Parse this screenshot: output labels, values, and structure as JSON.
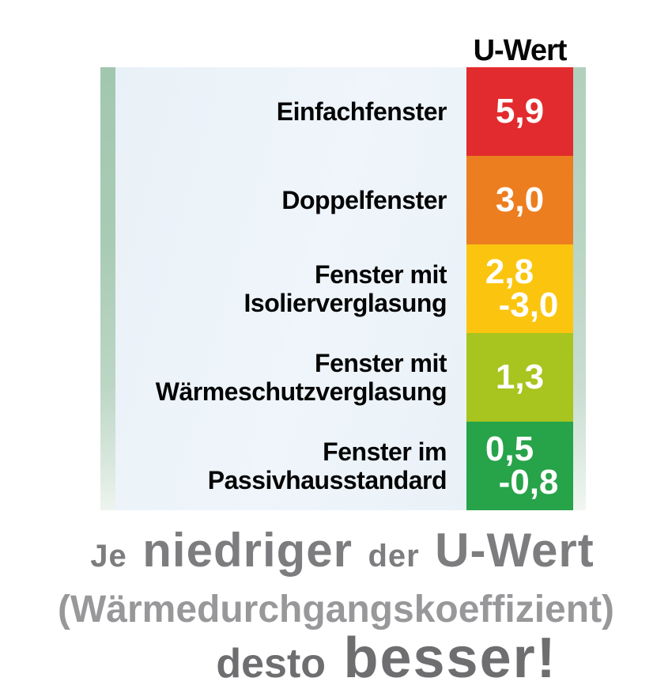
{
  "header": {
    "title": "U-Wert"
  },
  "chart_data": {
    "type": "bar",
    "title": "U-Wert",
    "categories": [
      "Einfachfenster",
      "Doppelfenster",
      "Fenster mit Isolierverglasung",
      "Fenster mit Wärmeschutzverglasung",
      "Fenster im Passivhausstandard"
    ],
    "value_labels": [
      "5,9",
      "3,0",
      "2,8 -3,0",
      "1,3",
      "0,5 -0,8"
    ],
    "values_numeric": [
      [
        5.9,
        5.9
      ],
      [
        3.0,
        3.0
      ],
      [
        2.8,
        3.0
      ],
      [
        1.3,
        1.3
      ],
      [
        0.5,
        0.8
      ]
    ],
    "colors": [
      "#e22b2e",
      "#ec7e20",
      "#fbc50f",
      "#a8c41f",
      "#27a34a"
    ],
    "legend_position": "none",
    "grid": false,
    "caption": "Je niedriger der U-Wert (Wärmedurchgangskoeffizient) desto besser!"
  },
  "rows": [
    {
      "label_lines": [
        "Einfachfenster"
      ],
      "value_lines": [
        "5,9"
      ],
      "color": "#e22b2e"
    },
    {
      "label_lines": [
        "Doppelfenster"
      ],
      "value_lines": [
        "3,0"
      ],
      "color": "#ec7e20"
    },
    {
      "label_lines": [
        "Fenster mit",
        "Isolierverglasung"
      ],
      "value_lines": [
        "2,8",
        "-3,0"
      ],
      "color": "#fbc50f"
    },
    {
      "label_lines": [
        "Fenster mit",
        "Wärmeschutzverglasung"
      ],
      "value_lines": [
        "1,3"
      ],
      "color": "#a8c41f"
    },
    {
      "label_lines": [
        "Fenster im",
        "Passivhausstandard"
      ],
      "value_lines": [
        "0,5",
        "-0,8"
      ],
      "color": "#27a34a"
    }
  ],
  "footer": {
    "line1": {
      "w1": "Je",
      "w2": "niedriger",
      "w3": "der",
      "w4": "U-Wert"
    },
    "line2": "(Wärmedurchgangskoeffizient)",
    "line3": {
      "w1": "desto",
      "w2": "besser!"
    }
  },
  "colors": {
    "panel_background": "#eaf2f8",
    "edge_strip": "#a9cbb5",
    "label_text": "#050505",
    "value_text": "#ffffff",
    "header_text": "#060606",
    "caption_gray_mid": "#7d7d80",
    "caption_gray_light": "#98989b",
    "caption_gray_dark": "#6e6e71"
  }
}
